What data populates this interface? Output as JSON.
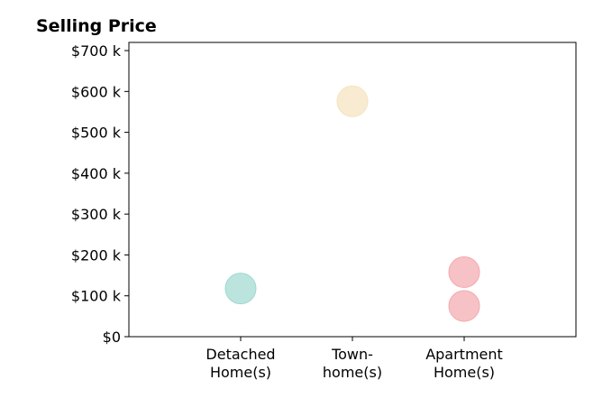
{
  "chart_data": {
    "type": "scatter",
    "title": "Selling Price",
    "xlabel": "",
    "ylabel": "",
    "categories": [
      [
        "Detached",
        "Home(s)"
      ],
      [
        "Town-",
        "home(s)"
      ],
      [
        "Apartment",
        "Home(s)"
      ]
    ],
    "yticks": [
      {
        "value": 0,
        "label": "$0"
      },
      {
        "value": 100,
        "label": "$100 k"
      },
      {
        "value": 200,
        "label": "$200 k"
      },
      {
        "value": 300,
        "label": "$300 k"
      },
      {
        "value": 400,
        "label": "$400 k"
      },
      {
        "value": 500,
        "label": "$500 k"
      },
      {
        "value": 600,
        "label": "$600 k"
      },
      {
        "value": 700,
        "label": "$700 k"
      }
    ],
    "ylim": [
      0,
      720
    ],
    "xlim": [
      -1,
      3
    ],
    "grid": false,
    "points": [
      {
        "category": 0,
        "value": 118,
        "color": "#9fd8d0"
      },
      {
        "category": 1,
        "value": 576,
        "color": "#f5e3bd"
      },
      {
        "category": 2,
        "value": 158,
        "color": "#f4a8ae"
      },
      {
        "category": 2,
        "value": 75,
        "color": "#f4a8ae"
      }
    ]
  }
}
